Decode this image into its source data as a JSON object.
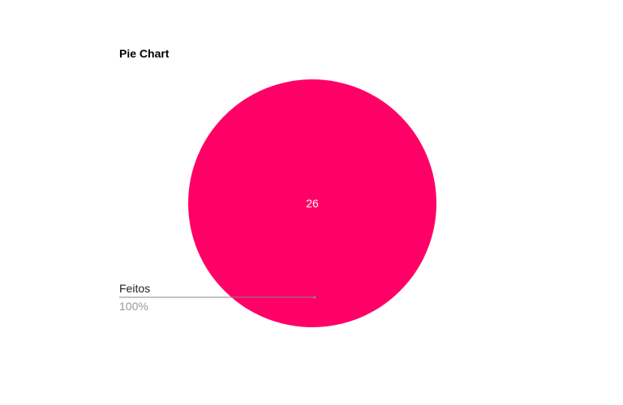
{
  "chart_data": {
    "type": "pie",
    "title": "Pie Chart",
    "categories": [
      "Feitos"
    ],
    "values": [
      26
    ],
    "percentages": [
      "100%"
    ],
    "colors": [
      "#ff0066"
    ],
    "legend_placement": "left",
    "callout_line_color": "#888888"
  }
}
